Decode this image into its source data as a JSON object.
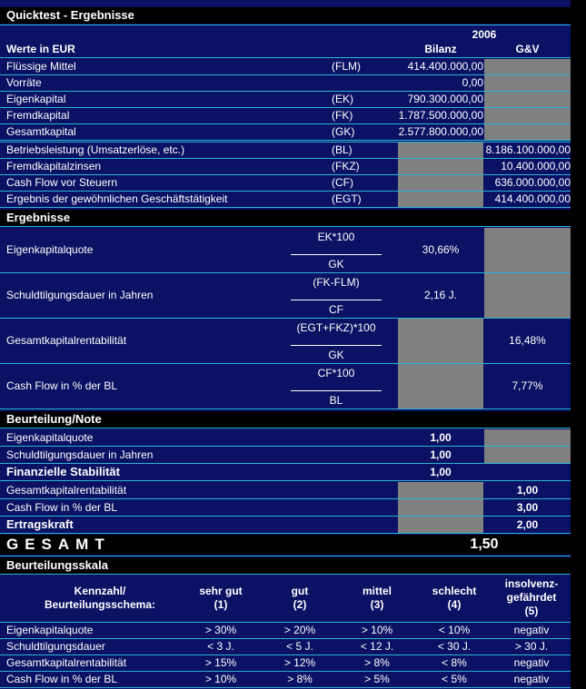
{
  "title": "Quicktest - Ergebnisse",
  "values": {
    "year": "2006",
    "label": "Werte in EUR",
    "bilanz": "Bilanz",
    "guv": "G&V",
    "rows": [
      {
        "label": "Flüssige Mittel",
        "abbr": "(FLM)",
        "bilanz": "414.400.000,00"
      },
      {
        "label": "Vorräte",
        "bilanz": "0,00"
      },
      {
        "label": "Eigenkapital",
        "abbr": "(EK)",
        "bilanz": "790.300.000,00"
      },
      {
        "label": "Fremdkapital",
        "abbr": "(FK)",
        "bilanz": "1.787.500.000,00"
      },
      {
        "label": "Gesamtkapital",
        "abbr": "(GK)",
        "bilanz": "2.577.800.000,00"
      },
      {
        "label": "Betriebsleistung (Umsatzerlöse, etc.)",
        "abbr": "(BL)",
        "guv": "8.186.100.000,00"
      },
      {
        "label": "Fremdkapitalzinsen",
        "abbr": "(FKZ)",
        "guv": "10.400.000,00"
      },
      {
        "label": "Cash Flow vor Steuern",
        "abbr": "(CF)",
        "guv": "636.000.000,00"
      },
      {
        "label": "Ergebnis der gewöhnlichen Geschäftstätigkeit",
        "abbr": "(EGT)",
        "guv": "414.400.000,00"
      }
    ]
  },
  "results": {
    "title": "Ergebnisse",
    "rows": [
      {
        "label": "Eigenkapitalquote",
        "numerator": "EK*100",
        "denominator": "GK",
        "bilanz": "30,66%"
      },
      {
        "label": "Schuldtilgungsdauer in Jahren",
        "numerator": "(FK-FLM)",
        "denominator": "CF",
        "bilanz": "2,16 J."
      },
      {
        "label": "Gesamtkapitalrentabilität",
        "numerator": "(EGT+FKZ)*100",
        "denominator": "GK",
        "guv": "16,48%"
      },
      {
        "label": "Cash Flow in % der BL",
        "numerator": "CF*100",
        "denominator": "BL",
        "guv": "7,77%"
      }
    ]
  },
  "rating": {
    "title": "Beurteilung/Note",
    "rows": [
      {
        "label": "Eigenkapitalquote",
        "bilanz": "1,00"
      },
      {
        "label": "Schuldtilgungsdauer in Jahren",
        "bilanz": "1,00"
      },
      {
        "label": "Finanzielle Stabilität",
        "bold": true,
        "bilanz": "1,00",
        "guv_blank": true
      },
      {
        "label": "Gesamtkapitalrentabilität",
        "guv": "1,00"
      },
      {
        "label": "Cash Flow in % der BL",
        "guv": "3,00"
      },
      {
        "label": "Ertragskraft",
        "bold": true,
        "guv": "2,00"
      }
    ]
  },
  "total": {
    "label": "GESAMT",
    "value": "1,50"
  },
  "scale": {
    "title": "Beurteilungsskala",
    "header": [
      [
        "Kennzahl/",
        "Beurteilungsschema:"
      ],
      [
        "sehr gut",
        "(1)"
      ],
      [
        "gut",
        "(2)"
      ],
      [
        "mittel",
        "(3)"
      ],
      [
        "schlecht",
        "(4)"
      ],
      [
        "insolvenz-",
        "gefährdet",
        "(5)"
      ]
    ],
    "rows": [
      [
        "Eigenkapitalquote",
        "> 30%",
        "> 20%",
        "> 10%",
        "< 10%",
        "negativ"
      ],
      [
        "Schuldtilgungsdauer",
        "< 3 J.",
        "< 5 J.",
        "< 12 J.",
        "< 30 J.",
        "> 30 J."
      ],
      [
        "Gesamtkapitalrentabilität",
        "> 15%",
        "> 12%",
        "> 8%",
        "< 8%",
        "negativ"
      ],
      [
        "Cash Flow in % der BL",
        "> 10%",
        "> 8%",
        "> 5%",
        "< 5%",
        "negativ"
      ]
    ]
  }
}
